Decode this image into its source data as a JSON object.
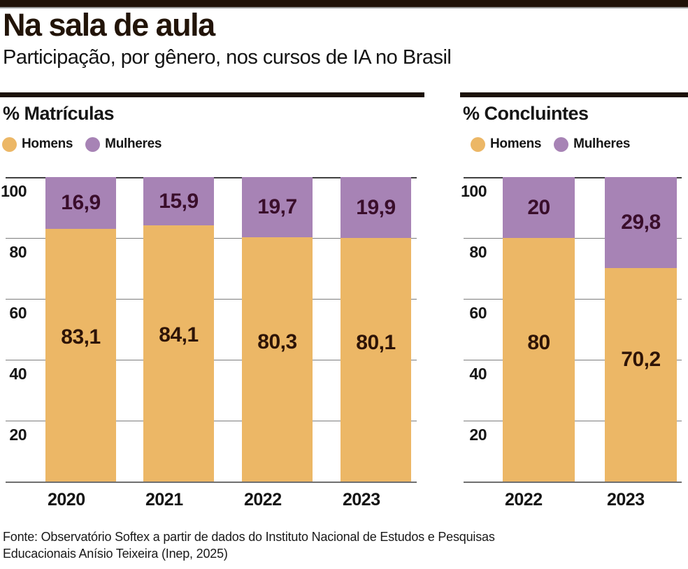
{
  "page": {
    "title": "Na sala de aula",
    "subtitle": "Participação, por gênero, nos cursos de IA no Brasil",
    "source_line1": "Fonte: Observatório Softex a partir de dados do Instituto Nacional de Estudos e Pesquisas",
    "source_line2": "Educacionais Anísio Teixeira (Inep, 2025)"
  },
  "colors": {
    "men": "#ecb766",
    "women": "#a783b5",
    "men_label_text": "#2e1407",
    "women_label_text": "#3a0e2b",
    "top_band": "#201208",
    "section_rule": "#1b1208",
    "grid": "#7d7d7d",
    "text": "#161616"
  },
  "legend": {
    "men_label": "Homens",
    "women_label": "Mulheres"
  },
  "chart_data": [
    {
      "type": "bar",
      "stacked": true,
      "title": "% Matrículas",
      "categories": [
        "2020",
        "2021",
        "2022",
        "2023"
      ],
      "series": [
        {
          "name": "Homens",
          "values": [
            83.1,
            84.1,
            80.3,
            80.1
          ],
          "labels": [
            "83,1",
            "84,1",
            "80,3",
            "80,1"
          ]
        },
        {
          "name": "Mulheres",
          "values": [
            16.9,
            15.9,
            19.7,
            19.9
          ],
          "labels": [
            "16,9",
            "15,9",
            "19,7",
            "19,9"
          ]
        }
      ],
      "ylim": [
        0,
        100
      ],
      "yticks": [
        20,
        40,
        60,
        80,
        100
      ],
      "grid": true,
      "legend_position": "top-left"
    },
    {
      "type": "bar",
      "stacked": true,
      "title": "% Concluintes",
      "categories": [
        "2022",
        "2023"
      ],
      "series": [
        {
          "name": "Homens",
          "values": [
            80,
            70.2
          ],
          "labels": [
            "80",
            "70,2"
          ]
        },
        {
          "name": "Mulheres",
          "values": [
            20,
            29.8
          ],
          "labels": [
            "20",
            "29,8"
          ]
        }
      ],
      "ylim": [
        0,
        100
      ],
      "yticks": [
        20,
        40,
        60,
        80,
        100
      ],
      "grid": true,
      "legend_position": "top-left"
    }
  ]
}
